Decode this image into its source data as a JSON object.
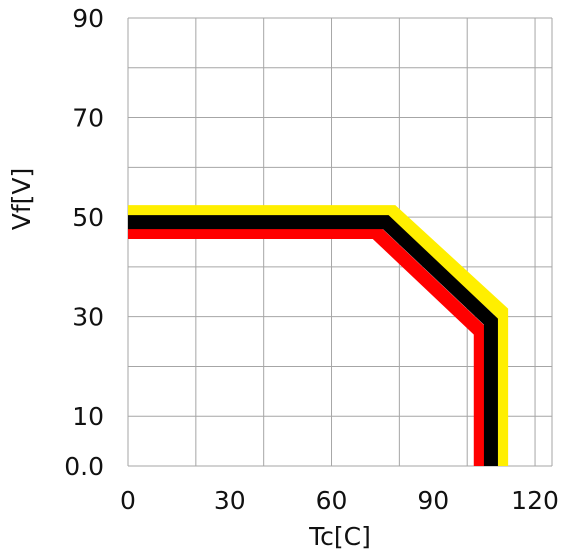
{
  "chart_data": {
    "type": "line",
    "title": "",
    "xlabel": "Tc[C]",
    "ylabel": "Vf[V]",
    "xlim": [
      0,
      125
    ],
    "ylim": [
      0,
      90
    ],
    "x_ticks": [
      0,
      30,
      60,
      90,
      120
    ],
    "x_tick_labels": [
      "0",
      "30",
      "60",
      "90",
      "120"
    ],
    "y_ticks": [
      0,
      10,
      30,
      50,
      70,
      90
    ],
    "y_tick_labels": [
      "0.0",
      "10",
      "30",
      "50",
      "70",
      "90"
    ],
    "grid": true,
    "series": [
      {
        "color": "#ffef00",
        "x": [
          0,
          78,
          110,
          110
        ],
        "y": [
          51,
          51,
          31,
          0
        ]
      },
      {
        "color": "#ff0000",
        "x": [
          0,
          73,
          104,
          104
        ],
        "y": [
          47,
          47,
          27,
          0
        ]
      },
      {
        "color": "#000000",
        "x": [
          0,
          76,
          107,
          107
        ],
        "y": [
          49,
          49,
          29,
          0
        ]
      }
    ]
  }
}
